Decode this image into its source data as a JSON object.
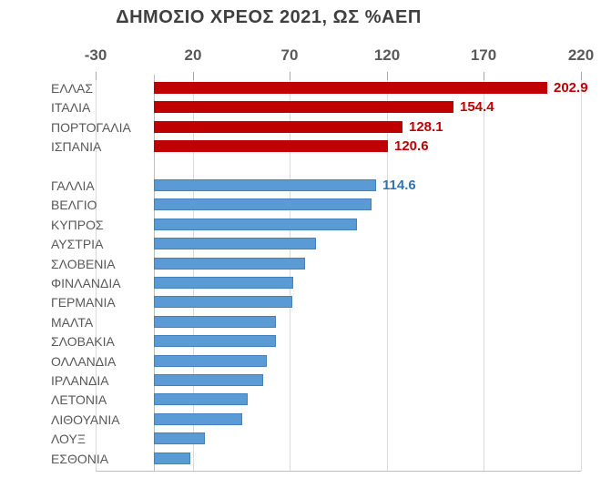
{
  "chart_data": {
    "type": "bar",
    "orientation": "horizontal",
    "title": "ΔΗΜΟΣΙΟ ΧΡΕΟΣ 2021, ΩΣ %ΑΕΠ",
    "x_ticks": [
      -30,
      20,
      70,
      120,
      170,
      220
    ],
    "x_range": [
      -30,
      220
    ],
    "grid": true,
    "legend": "none",
    "categories": [
      "ΕΛΛΑΣ",
      "ΙΤΑΛΙΑ",
      "ΠΟΡΤΟΓΑΛΙΑ",
      "ΙΣΠΑΝΙΑ",
      "ΓΑΛΛΙΑ",
      "ΒΕΛΓΙΟ",
      "ΚΥΠΡΟΣ",
      "ΑΥΣΤΡΙΑ",
      "ΣΛΟΒΕΝΙΑ",
      "ΦΙΝΛΑΝΔΙΑ",
      "ΓΕΡΜΑΝΙΑ",
      "ΜΑΛΤΑ",
      "ΣΛΟΒΑΚΙΑ",
      "ΟΛΛΑΝΔΙΑ",
      "ΙΡΛΑΝΔΙΑ",
      "ΛΕΤΟΝΙΑ",
      "ΛΙΘΟΥΑΝΙΑ",
      "ΛΟΥΞ",
      "ΕΣΘΟΝΙΑ"
    ],
    "values": [
      202.9,
      154.4,
      128.1,
      120.6,
      114.6,
      112.3,
      104.6,
      83.7,
      77.9,
      72.0,
      71.5,
      62.9,
      62.8,
      58.1,
      56.5,
      48.5,
      45.5,
      26.3,
      18.8
    ],
    "bars": [
      {
        "label": "ΕΛΛΑΣ",
        "value": 202.9,
        "color_group": "red",
        "value_label": "202.9"
      },
      {
        "label": "ΙΤΑΛΙΑ",
        "value": 154.4,
        "color_group": "red",
        "value_label": "154.4"
      },
      {
        "label": "ΠΟΡΤΟΓΑΛΙΑ",
        "value": 128.1,
        "color_group": "red",
        "value_label": "128.1"
      },
      {
        "label": "ΙΣΠΑΝΙΑ",
        "value": 120.6,
        "color_group": "red",
        "value_label": "120.6"
      },
      {
        "label": "",
        "value": null,
        "color_group": "spacer"
      },
      {
        "label": "ΓΑΛΛΙΑ",
        "value": 114.6,
        "color_group": "blue",
        "value_label": "114.6"
      },
      {
        "label": "ΒΕΛΓΙΟ",
        "value": 112.3,
        "color_group": "blue"
      },
      {
        "label": "ΚΥΠΡΟΣ",
        "value": 104.6,
        "color_group": "blue"
      },
      {
        "label": "ΑΥΣΤΡΙΑ",
        "value": 83.7,
        "color_group": "blue"
      },
      {
        "label": "ΣΛΟΒΕΝΙΑ",
        "value": 77.9,
        "color_group": "blue"
      },
      {
        "label": "ΦΙΝΛΑΝΔΙΑ",
        "value": 72.0,
        "color_group": "blue"
      },
      {
        "label": "ΓΕΡΜΑΝΙΑ",
        "value": 71.5,
        "color_group": "blue"
      },
      {
        "label": "ΜΑΛΤΑ",
        "value": 62.9,
        "color_group": "blue"
      },
      {
        "label": "ΣΛΟΒΑΚΙΑ",
        "value": 62.8,
        "color_group": "blue"
      },
      {
        "label": "ΟΛΛΑΝΔΙΑ",
        "value": 58.1,
        "color_group": "blue"
      },
      {
        "label": "ΙΡΛΑΝΔΙΑ",
        "value": 56.5,
        "color_group": "blue"
      },
      {
        "label": "ΛΕΤΟΝΙΑ",
        "value": 48.5,
        "color_group": "blue"
      },
      {
        "label": "ΛΙΘΟΥΑΝΙΑ",
        "value": 45.5,
        "color_group": "blue"
      },
      {
        "label": "ΛΟΥΞ",
        "value": 26.3,
        "color_group": "blue"
      },
      {
        "label": "ΕΣΘΟΝΙΑ",
        "value": 18.8,
        "color_group": "blue"
      }
    ],
    "colors": {
      "red_bar": "#C00000",
      "blue_bar": "#5B9BD5",
      "red_value_label": "#C00000",
      "blue_value_label": "#2E75B6",
      "axis_text": "#595959",
      "title_text": "#404040",
      "gridline": "#D9D9D9",
      "axis_line": "#BFBFBF",
      "tick_mark": "#A6A6A6",
      "background": "#FFFFFF"
    }
  }
}
